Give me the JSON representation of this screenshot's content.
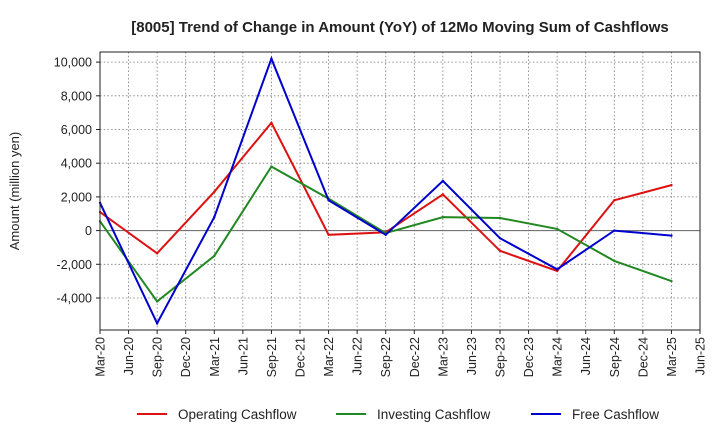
{
  "chart_data": {
    "type": "line",
    "title": "[8005]  Trend of Change in Amount (YoY) of 12Mo Moving Sum of Cashflows",
    "xlabel": "",
    "ylabel": "Amount (million yen)",
    "ylim": [
      -5900,
      10600
    ],
    "yticks": [
      -4000,
      -2000,
      0,
      2000,
      4000,
      6000,
      8000,
      10000
    ],
    "ytick_labels": [
      "-4,000",
      "-2,000",
      "0",
      "2,000",
      "4,000",
      "6,000",
      "8,000",
      "10,000"
    ],
    "categories": [
      "Mar-20",
      "Jun-20",
      "Sep-20",
      "Dec-20",
      "Mar-21",
      "Jun-21",
      "Sep-21",
      "Dec-21",
      "Mar-22",
      "Jun-22",
      "Sep-22",
      "Dec-22",
      "Mar-23",
      "Jun-23",
      "Sep-23",
      "Dec-23",
      "Mar-24",
      "Jun-24",
      "Sep-24",
      "Dec-24",
      "Mar-25",
      "Jun-25"
    ],
    "grid": true,
    "legend_position": "bottom",
    "series": [
      {
        "name": "Operating Cashflow",
        "color": "#dd1111",
        "values": [
          1100,
          null,
          -1350,
          null,
          2300,
          null,
          6400,
          null,
          -250,
          null,
          -100,
          null,
          2150,
          null,
          -1200,
          null,
          -2400,
          null,
          1800,
          null,
          2700,
          null
        ]
      },
      {
        "name": "Investing Cashflow",
        "color": "#228822",
        "values": [
          550,
          null,
          -4200,
          null,
          -1500,
          null,
          3800,
          null,
          1900,
          null,
          -150,
          null,
          800,
          null,
          750,
          null,
          100,
          null,
          -1800,
          null,
          -3000,
          null
        ]
      },
      {
        "name": "Free Cashflow",
        "color": "#0000cc",
        "values": [
          1650,
          null,
          -5500,
          null,
          800,
          null,
          10200,
          null,
          1800,
          null,
          -250,
          null,
          2950,
          null,
          -450,
          null,
          -2300,
          null,
          0,
          null,
          -300,
          null
        ]
      }
    ]
  }
}
